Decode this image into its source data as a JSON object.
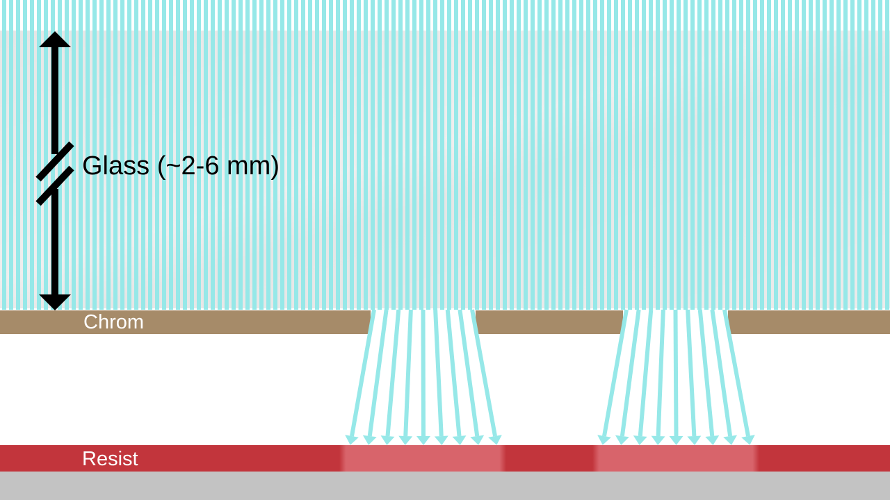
{
  "labels": {
    "glass": "Glass (~2-6 mm)",
    "chrome": "Chrom",
    "resist": "Resist"
  },
  "colors": {
    "light_ray": "#96e8e8",
    "glass": "#e6e6e6",
    "chrome": "#a68b69",
    "resist": "#c2353c",
    "resist_exposed": "#d8646b",
    "substrate": "#c3c3c3",
    "arrow": "#000000"
  },
  "icons": {
    "thickness_arrow": "double-headed-arrow-with-break-icon",
    "ray_arrowhead": "arrowhead-down-icon"
  }
}
